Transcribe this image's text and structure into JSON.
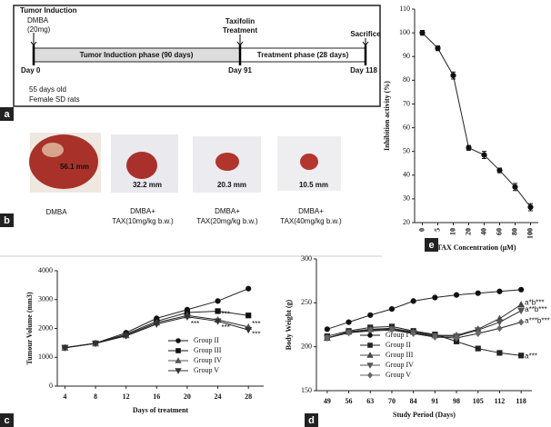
{
  "timeline": {
    "panel": "a",
    "start_labels": [
      "Tumor Induction",
      "DMBA",
      "(20mg)"
    ],
    "mid_labels": [
      "Taxifolin",
      "Treatment"
    ],
    "end_label": "Sacrifice",
    "phase1": "Tumor Induction phase (90 days)",
    "phase2": "Treatment phase (28 days)",
    "days": [
      "Day 0",
      "Day 91",
      "Day 118"
    ],
    "notes": [
      "55 days old",
      "Female SD rats"
    ]
  },
  "photos": {
    "panel": "b",
    "items": [
      {
        "size": "56.1 mm",
        "caption": [
          "DMBA"
        ]
      },
      {
        "size": "32.2 mm",
        "caption": [
          "DMBA+",
          "TAX(10mg/kg b.w.)"
        ]
      },
      {
        "size": "20.3 mm",
        "caption": [
          "DMBA+",
          "TAX(20mg/kg b.w.)"
        ]
      },
      {
        "size": "10.5 mm",
        "caption": [
          "DMBA+",
          "TAX(40mg/kg b.w.)"
        ]
      }
    ]
  },
  "chart_data": [
    {
      "type": "line",
      "panel": "e",
      "x_label": "TAX Concentration (μM)",
      "y_label": "Inhibition activity (%)",
      "categories": [
        "0",
        "5",
        "10",
        "20",
        "40",
        "60",
        "80",
        "100"
      ],
      "values": [
        100,
        93.5,
        82,
        51.5,
        48.5,
        42,
        35,
        26.5
      ],
      "errors": [
        1,
        1,
        1.5,
        1,
        1.5,
        1,
        1.5,
        1.5
      ],
      "color": "#111",
      "marker": "circle",
      "ylim": [
        20,
        110
      ],
      "yticks": [
        20,
        30,
        40,
        50,
        60,
        70,
        80,
        90,
        100,
        110
      ]
    },
    {
      "type": "line",
      "panel": "c",
      "x_label": "Days of treatment",
      "y_label": "Tumour Volume (mm3)",
      "x": [
        4,
        8,
        12,
        16,
        20,
        24,
        28
      ],
      "xlim": [
        3,
        30
      ],
      "xticks": [
        4,
        8,
        12,
        16,
        20,
        24,
        28
      ],
      "ylim": [
        0,
        4000
      ],
      "yticks": [
        0,
        1000,
        2000,
        3000,
        4000
      ],
      "legend": "lower right",
      "series": [
        {
          "name": "Group II",
          "color": "#111",
          "marker": "circle",
          "values": [
            1340,
            1490,
            1850,
            2350,
            2650,
            2950,
            3380
          ]
        },
        {
          "name": "Group III",
          "color": "#111",
          "marker": "square",
          "values": [
            1330,
            1480,
            1800,
            2250,
            2550,
            2600,
            2450
          ]
        },
        {
          "name": "Group IV",
          "color": "#555",
          "marker": "triangle",
          "values": [
            1330,
            1480,
            1760,
            2200,
            2450,
            2300,
            2050
          ]
        },
        {
          "name": "Group V",
          "color": "#333",
          "marker": "triangle-down",
          "values": [
            1330,
            1480,
            1740,
            2150,
            2400,
            2250,
            1950
          ]
        }
      ],
      "annotations": [
        {
          "text": "***",
          "x": 20,
          "y": 2150
        },
        {
          "text": "***",
          "x": 24,
          "y": 2480
        },
        {
          "text": "***",
          "x": 24,
          "y": 2020
        },
        {
          "text": "***",
          "x": 28,
          "y": 2150
        },
        {
          "text": "***",
          "x": 28,
          "y": 1780
        }
      ]
    },
    {
      "type": "line",
      "panel": "d",
      "x_label": "Study Period (Days)",
      "y_label": "Body Weight (g)",
      "categories": [
        "49",
        "56",
        "63",
        "70",
        "84",
        "91",
        "98",
        "105",
        "112",
        "118"
      ],
      "ylim": [
        150,
        300
      ],
      "yticks": [
        150,
        200,
        250,
        300
      ],
      "legend": "lower left",
      "series": [
        {
          "name": "Group I",
          "color": "#111",
          "marker": "circle",
          "values": [
            220,
            228,
            236,
            243,
            252,
            256,
            259,
            261,
            263,
            265
          ]
        },
        {
          "name": "Group II",
          "color": "#222",
          "marker": "square",
          "values": [
            212,
            218,
            222,
            223,
            218,
            214,
            206,
            198,
            193,
            190
          ]
        },
        {
          "name": "Group III",
          "color": "#444",
          "marker": "triangle",
          "values": [
            210,
            217,
            220,
            221,
            217,
            213,
            213,
            220,
            232,
            248
          ]
        },
        {
          "name": "Group IV",
          "color": "#555",
          "marker": "triangle-down",
          "values": [
            210,
            216,
            219,
            220,
            216,
            212,
            212,
            219,
            228,
            241
          ]
        },
        {
          "name": "Group V",
          "color": "#666",
          "marker": "diamond",
          "values": [
            210,
            216,
            218,
            219,
            215,
            211,
            210,
            215,
            221,
            228
          ]
        }
      ],
      "annotations": [
        {
          "text": "a*b***",
          "x": "118",
          "y": 250
        },
        {
          "text": "a**b***",
          "x": "118",
          "y": 242
        },
        {
          "text": "a***b***",
          "x": "118",
          "y": 229
        },
        {
          "text": "a***",
          "x": "118",
          "y": 189
        }
      ]
    }
  ]
}
